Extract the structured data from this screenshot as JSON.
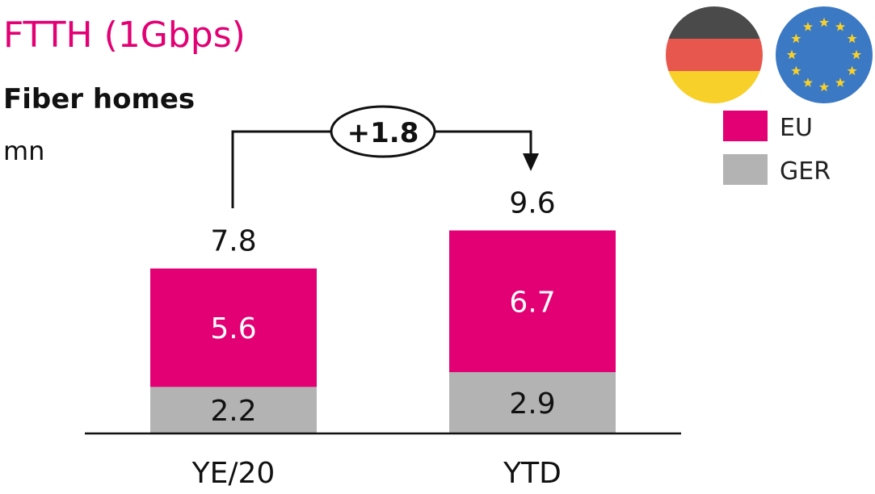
{
  "title": "FTTH (1Gbps)",
  "subtitle": "Fiber homes",
  "unit": "mn",
  "colors": {
    "EU": "#e20074",
    "GER": "#b3b3b3"
  },
  "flags": [
    "germany-flag",
    "eu-flag"
  ],
  "chart_data": {
    "type": "bar",
    "stacked": true,
    "categories": [
      "YE/20",
      "YTD"
    ],
    "series": [
      {
        "name": "GER",
        "values": [
          2.2,
          2.9
        ]
      },
      {
        "name": "EU",
        "values": [
          5.6,
          6.7
        ]
      }
    ],
    "totals": [
      "7.8",
      "9.6"
    ],
    "segment_labels": {
      "GER": [
        "2.2",
        "2.9"
      ],
      "EU": [
        "5.6",
        "6.7"
      ]
    },
    "annotation": "+1.8",
    "legend": [
      "EU",
      "GER"
    ],
    "legend_position": "top-right",
    "grid": false
  }
}
